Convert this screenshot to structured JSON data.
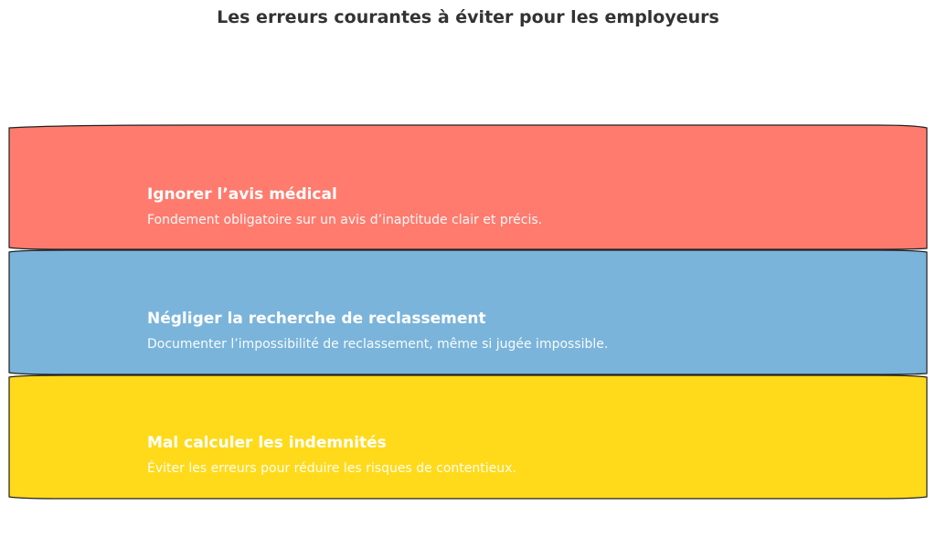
{
  "title": "Les erreurs courantes à éviter pour les employeurs",
  "items": [
    {
      "title": "Ignorer l’avis médical",
      "description": "Fondement obligatoire sur un avis d’inaptitude clair et précis.",
      "color": "#FF7B6E"
    },
    {
      "title": "Négliger la recherche de reclassement",
      "description": "Documenter l’impossibilité de reclassement, même si jugée impossible.",
      "color": "#7AB4DA"
    },
    {
      "title": "Mal calculer les indemnités",
      "description": "Éviter les erreurs pour réduire les risques de contentieux.",
      "color": "#FFDA1A"
    }
  ]
}
